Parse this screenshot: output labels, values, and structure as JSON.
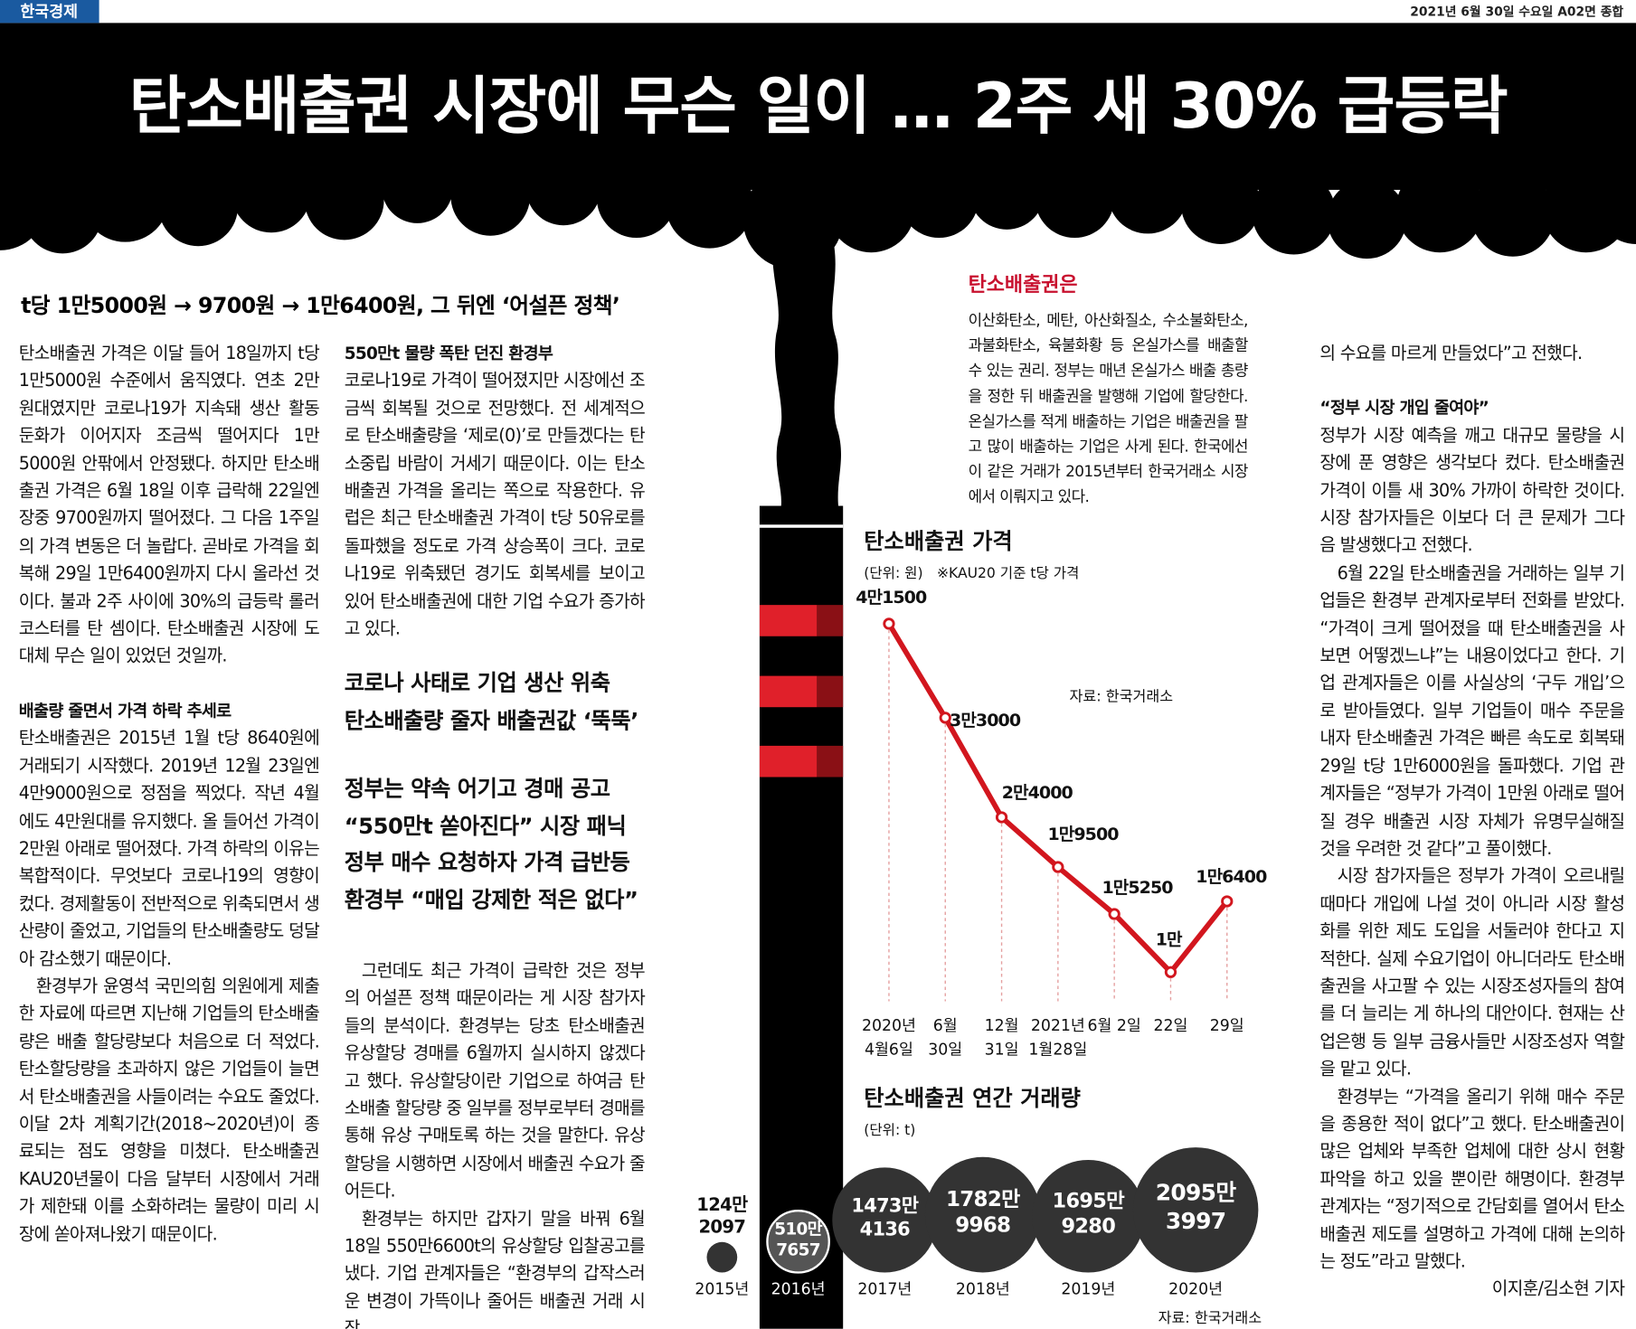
{
  "masthead": {
    "paper": "한국경제",
    "dateline": "2021년 6월 30일 수요일 A02면 종합"
  },
  "headline": "탄소배출권 시장에 무슨 일이 … 2주 새 30% 급등락",
  "subheadline": "t당 1만5000원 → 9700원 → 1만6400원, 그 뒤엔 ‘어설픈 정책’",
  "article": {
    "lead": [
      "탄소배출권 가격은 이달 들어 18일까지 t당 1만5000원 수준에서 움직였다. 연초 2만원대였지만 코로나19가 지속돼 생산 활동 둔화가 이어지자 조금씩 떨어지다 1만5000원 안팎에서 안정됐다. 하지만 탄소배출권 가격은 6월 18일 이후 급락해 22일엔 장중 9700원까지 떨어졌다. 그 다음 1주일의 가격 변동은 더 놀랍다. 곧바로 가격을 회복해 29일 1만6400원까지 다시 올라선 것이다. 불과 2주 사이에 30%의 급등락 롤러코스터를 탄 셈이다. 탄소배출권 시장에 도대체 무슨 일이 있었던 것일까."
    ],
    "section1": {
      "heading": "배출량 줄면서 가격 하락 추세로",
      "paragraphs": [
        "탄소배출권은 2015년 1월 t당 8640원에 거래되기 시작했다. 2019년 12월 23일엔 4만9000원으로 정점을 찍었다. 작년 4월에도 4만원대를 유지했다. 올 들어선 가격이 2만원 아래로 떨어졌다. 가격 하락의 이유는 복합적이다. 무엇보다 코로나19의 영향이 컸다. 경제활동이 전반적으로 위축되면서 생산량이 줄었고, 기업들의 탄소배출량도 덩달아 감소했기 때문이다.",
        "환경부가 윤영석 국민의힘 의원에게 제출한 자료에 따르면 지난해 기업들의 탄소배출량은 배출 할당량보다 처음으로 더 적었다. 탄소할당량을 초과하지 않은 기업들이 늘면서 탄소배출권을 사들이려는 수요도 줄었다. 이달 2차 계획기간(2018~2020년)이 종료되는 점도 영향을 미쳤다. 탄소배출권 KAU20년물이 다음 달부터 시장에서 거래가 제한돼 이를 소화하려는 물량이 미리 시장에 쏟아져나왔기 때문이다."
      ]
    },
    "section2": {
      "heading": "550만t 물량 폭탄 던진 환경부",
      "paragraphs": [
        "코로나19로 가격이 떨어졌지만 시장에선 조금씩 회복될 것으로 전망했다. 전 세계적으로 탄소배출량을 ‘제로(0)’로 만들겠다는 탄소중립 바람이 거세기 때문이다. 이는 탄소배출권 가격을 올리는 쪽으로 작용한다. 유럽은 최근 탄소배출권 가격이 t당 50유로를 돌파했을 정도로 가격 상승폭이 크다. 코로나19로 위축됐던 경기도 회복세를 보이고 있어 탄소배출권에 대한 기업 수요가 증가하고 있다."
      ]
    },
    "pullquotes": [
      [
        "코로나 사태로 기업 생산 위축",
        "탄소배출량 줄자 배출권값 ‘뚝뚝’"
      ],
      [
        "정부는 약속 어기고 경매 공고",
        "“550만t 쏟아진다” 시장 패닉",
        "정부 매수 요청하자 가격 급반등",
        "환경부 “매입 강제한 적은 없다”"
      ]
    ],
    "section3": {
      "paragraphs": [
        "그런데도 최근 가격이 급락한 것은 정부의 어설픈 정책 때문이라는 게 시장 참가자들의 분석이다. 환경부는 당초 탄소배출권 유상할당 경매를 6월까지 실시하지 않겠다고 했다. 유상할당이란 기업으로 하여금 탄소배출 할당량 중 일부를 정부로부터 경매를 통해 유상 구매토록 하는 것을 말한다. 유상할당을 시행하면 시장에서 배출권 수요가 줄어든다.",
        "환경부는 하지만 갑자기 말을 바꿔 6월 18일 550만6600t의 유상할당 입찰공고를 냈다. 기업 관계자들은 “환경부의 갑작스러운 변경이 가뜩이나 줄어든 배출권 거래 시장"
      ]
    },
    "continuation": "의 수요를 마르게 만들었다”고 전했다.",
    "section4": {
      "heading": "“정부 시장 개입 줄여야”",
      "paragraphs": [
        "정부가 시장 예측을 깨고 대규모 물량을 시장에 푼 영향은 생각보다 컸다. 탄소배출권 가격이 이틀 새 30% 가까이 하락한 것이다. 시장 참가자들은 이보다 더 큰 문제가 그다음 발생했다고 전했다.",
        "6월 22일 탄소배출권을 거래하는 일부 기업들은 환경부 관계자로부터 전화를 받았다. “가격이 크게 떨어졌을 때 탄소배출권을 사보면 어떻겠느냐”는 내용이었다고 한다. 기업 관계자들은 이를 사실상의 ‘구두 개입’으로 받아들였다. 일부 기업들이 매수 주문을 내자 탄소배출권 가격은 빠른 속도로 회복돼 29일 t당 1만6000원을 돌파했다. 기업 관계자들은 “정부가 가격이 1만원 아래로 떨어질 경우 배출권 시장 자체가 유명무실해질 것을 우려한 것 같다”고 풀이했다.",
        "시장 참가자들은 정부가 가격이 오르내릴 때마다 개입에 나설 것이 아니라 시장 활성화를 위한 제도 도입을 서둘러야 한다고 지적한다. 실제 수요기업이 아니더라도 탄소배출권을 사고팔 수 있는 시장조성자들의 참여를 더 늘리는 게 하나의 대안이다. 현재는 산업은행 등 일부 금융사들만 시장조성자 역할을 맡고 있다.",
        "환경부는 “가격을 올리기 위해 매수 주문을 종용한 적이 없다”고 했다. 탄소배출권이 많은 업체와 부족한 업체에 대한 상시 현황 파악을 하고 있을 뿐이란 해명이다. 환경부 관계자는 “정기적으로 간담회를 열어서 탄소배출권 제도를 설명하고 가격에 대해 논의하는 정도”라고 말했다."
      ]
    },
    "byline": "이지훈/김소현 기자"
  },
  "sidebar": {
    "title": "탄소배출권은",
    "text": "이산화탄소, 메탄, 아산화질소, 수소불화탄소, 과불화탄소, 육불화황 등 온실가스를 배출할 수 있는 권리. 정부는 매년 온실가스 배출 총량을 정한 뒤 배출권을 발행해 기업에 할당한다. 온실가스를 적게 배출하는 기업은 배출권을 팔고 많이 배출하는 기업은 사게 된다. 한국에선 이 같은 거래가 2015년부터 한국거래소 시장에서 이뤄지고 있다."
  },
  "chart_data": [
    {
      "type": "line",
      "title": "탄소배출권 가격",
      "unit": "(단위: 원)",
      "note": "※KAU20 기준 t당 가격",
      "source": "자료: 한국거래소",
      "categories": [
        [
          "2020년",
          "4월6일"
        ],
        [
          "6월",
          "30일"
        ],
        [
          "12월",
          "31일"
        ],
        [
          "2021년",
          "1월28일"
        ],
        [
          "6월 2일"
        ],
        [
          "22일"
        ],
        [
          "29일"
        ]
      ],
      "values": [
        41500,
        33000,
        24000,
        19500,
        15250,
        10000,
        16400
      ],
      "value_labels": [
        "4만1500",
        "3만3000",
        "2만4000",
        "1만9500",
        "1만5250",
        "1만",
        "1만6400"
      ],
      "color": "#d2161e"
    },
    {
      "type": "bubble",
      "title": "탄소배출권 연간 거래량",
      "unit": "(단위: t)",
      "source": "자료: 한국거래소",
      "categories": [
        "2015년",
        "2016년",
        "2017년",
        "2018년",
        "2019년",
        "2020년"
      ],
      "values": [
        1242097,
        5107657,
        14734136,
        17829968,
        16959280,
        20953997
      ],
      "value_labels": [
        [
          "124만",
          "2097"
        ],
        [
          "510만",
          "7657"
        ],
        [
          "1473만",
          "4136"
        ],
        [
          "1782만",
          "9968"
        ],
        [
          "1695만",
          "9280"
        ],
        [
          "2095만",
          "3997"
        ]
      ],
      "color": "#333333"
    }
  ]
}
